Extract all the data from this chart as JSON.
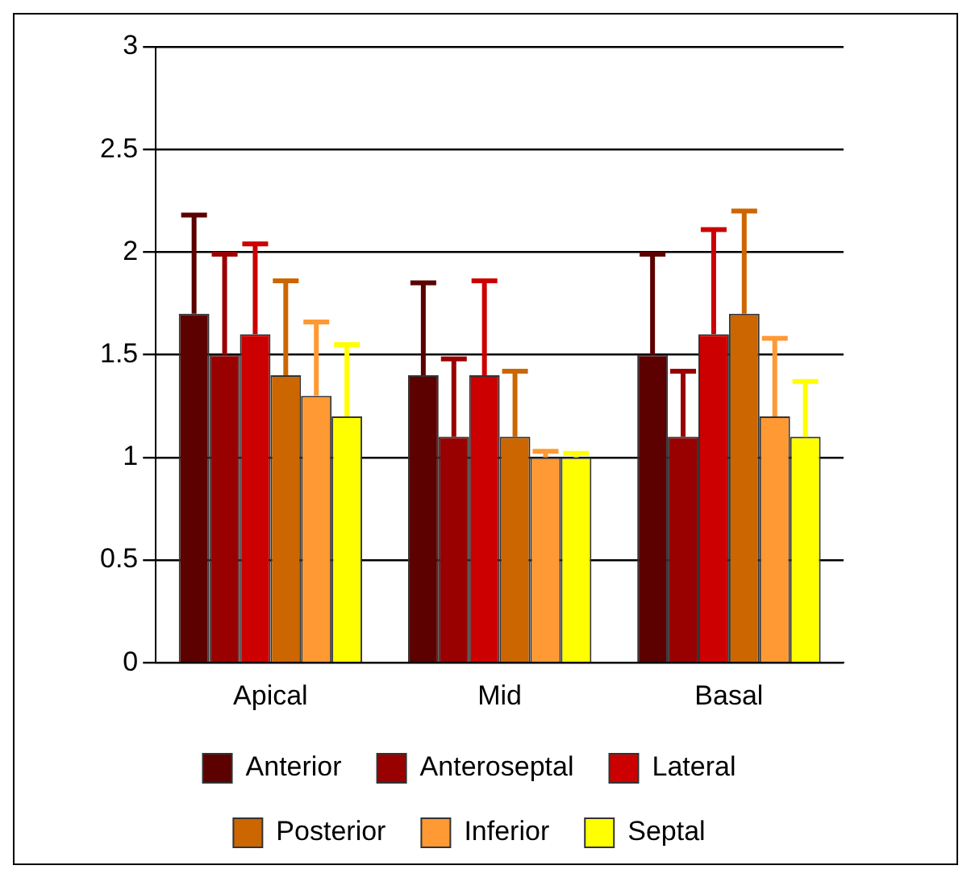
{
  "chart_data": {
    "type": "bar",
    "categories": [
      "Apical",
      "Mid",
      "Basal"
    ],
    "series": [
      {
        "name": "Anterior",
        "color": "#5c0000",
        "values": [
          1.7,
          1.4,
          1.5
        ],
        "errors": [
          [
            1.7,
            2.18
          ],
          [
            1.4,
            1.85
          ],
          [
            1.5,
            1.99
          ]
        ]
      },
      {
        "name": "Anteroseptal",
        "color": "#990000",
        "values": [
          1.5,
          1.1,
          1.1
        ],
        "errors": [
          [
            1.5,
            1.99
          ],
          [
            1.1,
            1.48
          ],
          [
            1.1,
            1.42
          ]
        ]
      },
      {
        "name": "Lateral",
        "color": "#cc0000",
        "values": [
          1.6,
          1.4,
          1.6
        ],
        "errors": [
          [
            1.6,
            2.04
          ],
          [
            1.4,
            1.86
          ],
          [
            1.6,
            2.11
          ]
        ]
      },
      {
        "name": "Posterior",
        "color": "#cc6600",
        "values": [
          1.4,
          1.1,
          1.7
        ],
        "errors": [
          [
            1.4,
            1.86
          ],
          [
            1.1,
            1.42
          ],
          [
            1.7,
            2.2
          ]
        ]
      },
      {
        "name": "Inferior",
        "color": "#ff9933",
        "values": [
          1.3,
          1.0,
          1.2
        ],
        "errors": [
          [
            1.3,
            1.66
          ],
          [
            1.0,
            1.03
          ],
          [
            1.2,
            1.58
          ]
        ]
      },
      {
        "name": "Septal",
        "color": "#ffff00",
        "values": [
          1.2,
          1.0,
          1.1
        ],
        "errors": [
          [
            1.2,
            1.55
          ],
          [
            1.0,
            1.02
          ],
          [
            1.1,
            1.37
          ]
        ]
      }
    ],
    "ylim": [
      0,
      3
    ],
    "yticks": [
      0,
      0.5,
      1,
      1.5,
      2,
      2.5,
      3
    ],
    "grid": "y",
    "legend": "bottom"
  }
}
